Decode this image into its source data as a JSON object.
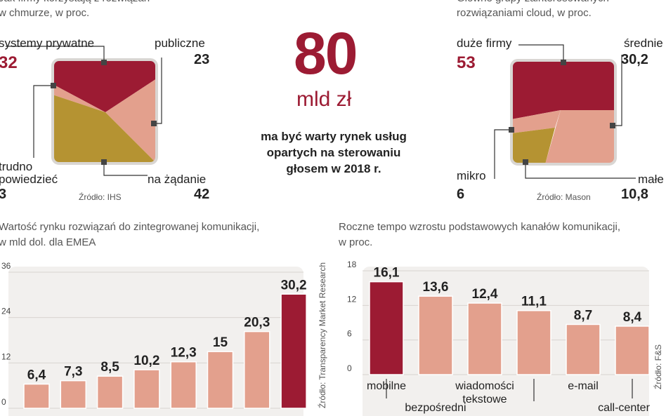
{
  "colors": {
    "dark_red": "#9c1b33",
    "salmon": "#e3a08d",
    "olive": "#b59332",
    "panel": "#f2f0ee",
    "grid": "#d8d4d0"
  },
  "top_left": {
    "caption_line1": "Jak firmy korzystają z rozwiązań",
    "caption_line2": "w chmurze, w proc.",
    "source": "Źródło: IHS",
    "labels": {
      "private_name": "systemy prywatne",
      "private_value": "32",
      "public_name": "publiczne",
      "public_value": "23",
      "hard_name_1": "trudno",
      "hard_name_2": "powiedzieć",
      "hard_value": "3",
      "ondemand_name": "na żądanie",
      "ondemand_value": "42"
    }
  },
  "center": {
    "big_number": "80",
    "unit": "mld zł",
    "line1": "ma być warty rynek usług",
    "line2": "opartych na sterowaniu",
    "line3": "głosem w 2018 r."
  },
  "top_right": {
    "caption_line1": "Główne grupy zainteresowanych",
    "caption_line2": "rozwiązaniami cloud, w proc.",
    "source": "Źródło: Mason",
    "labels": {
      "large_name": "duże firmy",
      "large_value": "53",
      "medium_name": "średnie",
      "medium_value": "30,2",
      "micro_name": "mikro",
      "micro_value": "6",
      "small_name": "małe",
      "small_value": "10,8"
    }
  },
  "bottom_left": {
    "caption_line1": "Wartość rynku rozwiązań do zintegrowanej komunikacji,",
    "caption_line2": "w mld dol. dla EMEA",
    "source": "Źródło: Transparency Market Research"
  },
  "bottom_right": {
    "caption_line1": "Roczne tempo wzrostu podstawowych kanałów komunikacji,",
    "caption_line2": "w proc.",
    "source": "Źródło: F&S"
  },
  "chart_data": [
    {
      "type": "area",
      "title": "Jak firmy korzystają z rozwiązań w chmurze, w proc.",
      "categories": [
        "systemy prywatne",
        "publiczne",
        "trudno powiedzieć",
        "na żądanie"
      ],
      "values": [
        32,
        23,
        3,
        42
      ]
    },
    {
      "type": "area",
      "title": "Główne grupy zainteresowanych rozwiązaniami cloud, w proc.",
      "categories": [
        "duże firmy",
        "średnie",
        "mikro",
        "małe"
      ],
      "values": [
        53,
        30.2,
        6,
        10.8
      ]
    },
    {
      "type": "bar",
      "title": "Wartość rynku rozwiązań do zintegrowanej komunikacji, w mld dol. dla EMEA",
      "categories": [
        "",
        "",
        "",
        "",
        "",
        "",
        "",
        ""
      ],
      "values": [
        6.4,
        7.3,
        8.5,
        10.2,
        12.3,
        15,
        20.3,
        30.2
      ],
      "value_labels": [
        "6,4",
        "7,3",
        "8,5",
        "10,2",
        "12,3",
        "15",
        "20,3",
        "30,2"
      ],
      "highlight_index": 7,
      "yticks": [
        0,
        12,
        24,
        36
      ],
      "ylim": [
        0,
        36
      ],
      "grid": true
    },
    {
      "type": "bar",
      "title": "Roczne tempo wzrostu podstawowych kanałów komunikacji, w proc.",
      "categories": [
        "mobilne",
        "bezpośredni",
        "wiadomości tekstowe",
        "",
        "e-mail",
        "call-center"
      ],
      "values": [
        16.1,
        13.6,
        12.4,
        11.1,
        8.7,
        8.4
      ],
      "value_labels": [
        "16,1",
        "13,6",
        "12,4",
        "11,1",
        "8,7",
        "8,4"
      ],
      "highlight_index": 0,
      "yticks": [
        0,
        6,
        12,
        18
      ],
      "ylim": [
        0,
        18
      ],
      "grid": true
    }
  ]
}
